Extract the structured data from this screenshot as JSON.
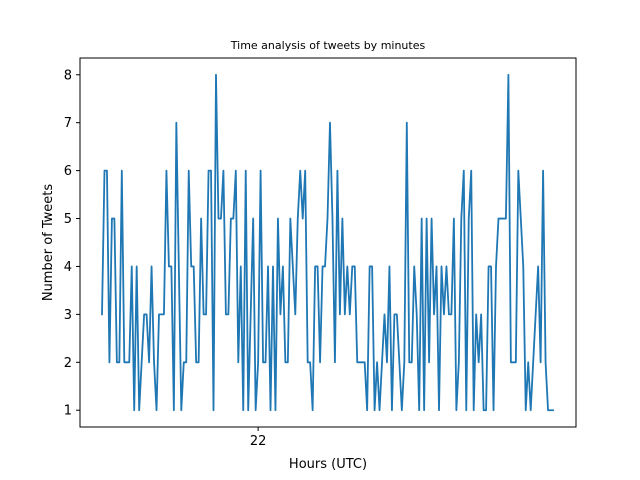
{
  "chart_data": {
    "type": "line",
    "title": "Time analysis of tweets by minutes",
    "xlabel": "Hours (UTC)",
    "ylabel": "Number of Tweets",
    "x_ticks": [
      "22"
    ],
    "x_tick_index": 63,
    "ylim": [
      0.65,
      8.35
    ],
    "y_ticks": [
      1,
      2,
      3,
      4,
      5,
      6,
      7,
      8
    ],
    "grid": false,
    "line_color": "#1f77b4",
    "series": [
      {
        "values": [
          3,
          6,
          6,
          2,
          5,
          5,
          2,
          2,
          6,
          2,
          2,
          2,
          4,
          1,
          4,
          1,
          2,
          3,
          3,
          2,
          4,
          2,
          1,
          3,
          3,
          3,
          6,
          4,
          4,
          1,
          7,
          4,
          1,
          2,
          2,
          6,
          4,
          4,
          2,
          2,
          5,
          3,
          3,
          6,
          6,
          1,
          8,
          5,
          5,
          6,
          3,
          3,
          5,
          5,
          6,
          2,
          4,
          1,
          6,
          1,
          3,
          5,
          1,
          2,
          6,
          2,
          2,
          4,
          1,
          4,
          1,
          5,
          3,
          4,
          2,
          2,
          5,
          4,
          3,
          5,
          6,
          5,
          6,
          2,
          2,
          1,
          4,
          4,
          2,
          4,
          4,
          5,
          7,
          5,
          2,
          6,
          3,
          5,
          3,
          4,
          3,
          4,
          4,
          2,
          2,
          2,
          2,
          1,
          4,
          4,
          1,
          2,
          1,
          2,
          3,
          2,
          4,
          1,
          3,
          3,
          2,
          1,
          2,
          7,
          2,
          2,
          4,
          3,
          1,
          5,
          1,
          5,
          2,
          5,
          3,
          4,
          1,
          4,
          3,
          4,
          3,
          3,
          5,
          1,
          2,
          5,
          6,
          1,
          5,
          6,
          1,
          3,
          2,
          3,
          1,
          1,
          4,
          4,
          1,
          4,
          5,
          5,
          5,
          5,
          8,
          2,
          2,
          2,
          6,
          5,
          4,
          1,
          2,
          1,
          2,
          3,
          4,
          2,
          6,
          2,
          1,
          1,
          1
        ]
      }
    ]
  }
}
